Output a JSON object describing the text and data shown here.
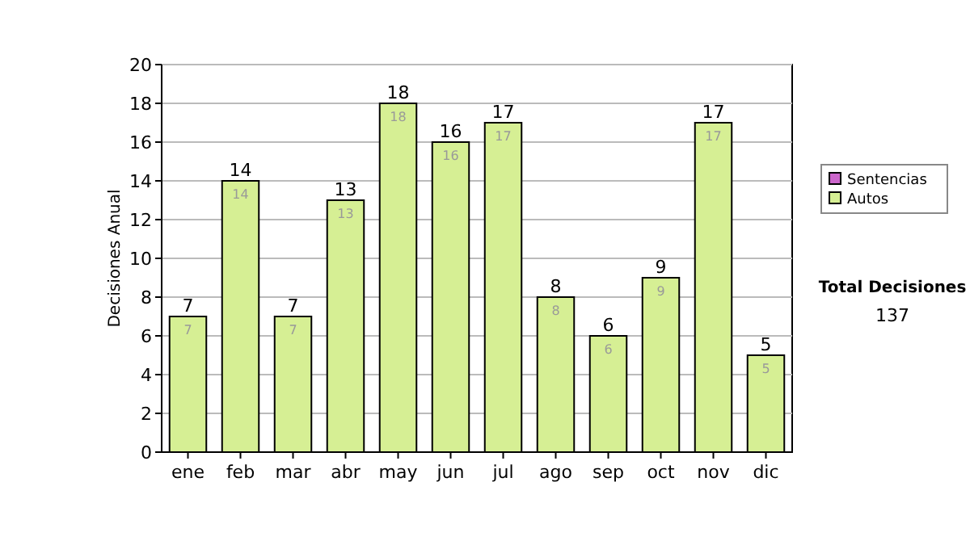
{
  "chart_data": {
    "type": "bar",
    "stacked": true,
    "ylabel": "Decisiones Anual",
    "categories": [
      "ene",
      "feb",
      "mar",
      "abr",
      "may",
      "jun",
      "jul",
      "ago",
      "sep",
      "oct",
      "nov",
      "dic"
    ],
    "series": [
      {
        "name": "Sentencias",
        "color": "#cc66cc",
        "values": [
          0,
          0,
          0,
          0,
          0,
          0,
          0,
          0,
          0,
          0,
          0,
          0
        ]
      },
      {
        "name": "Autos",
        "color": "#d6ef94",
        "values": [
          7,
          14,
          7,
          13,
          18,
          16,
          17,
          8,
          6,
          9,
          17,
          5
        ],
        "value_labels": [
          "7",
          "14",
          "7",
          "13",
          "18",
          "16",
          "17",
          "8",
          "6",
          "9",
          "17",
          "5"
        ]
      }
    ],
    "totals": [
      "7",
      "14",
      "7",
      "13",
      "18",
      "16",
      "17",
      "8",
      "6",
      "9",
      "17",
      "5"
    ],
    "ylim": [
      0,
      20
    ],
    "yticks": [
      0,
      2,
      4,
      6,
      8,
      10,
      12,
      14,
      16,
      18,
      20
    ],
    "grid": "y",
    "legend": "right",
    "annotations": [
      "Total Decisiones",
      "137"
    ]
  }
}
